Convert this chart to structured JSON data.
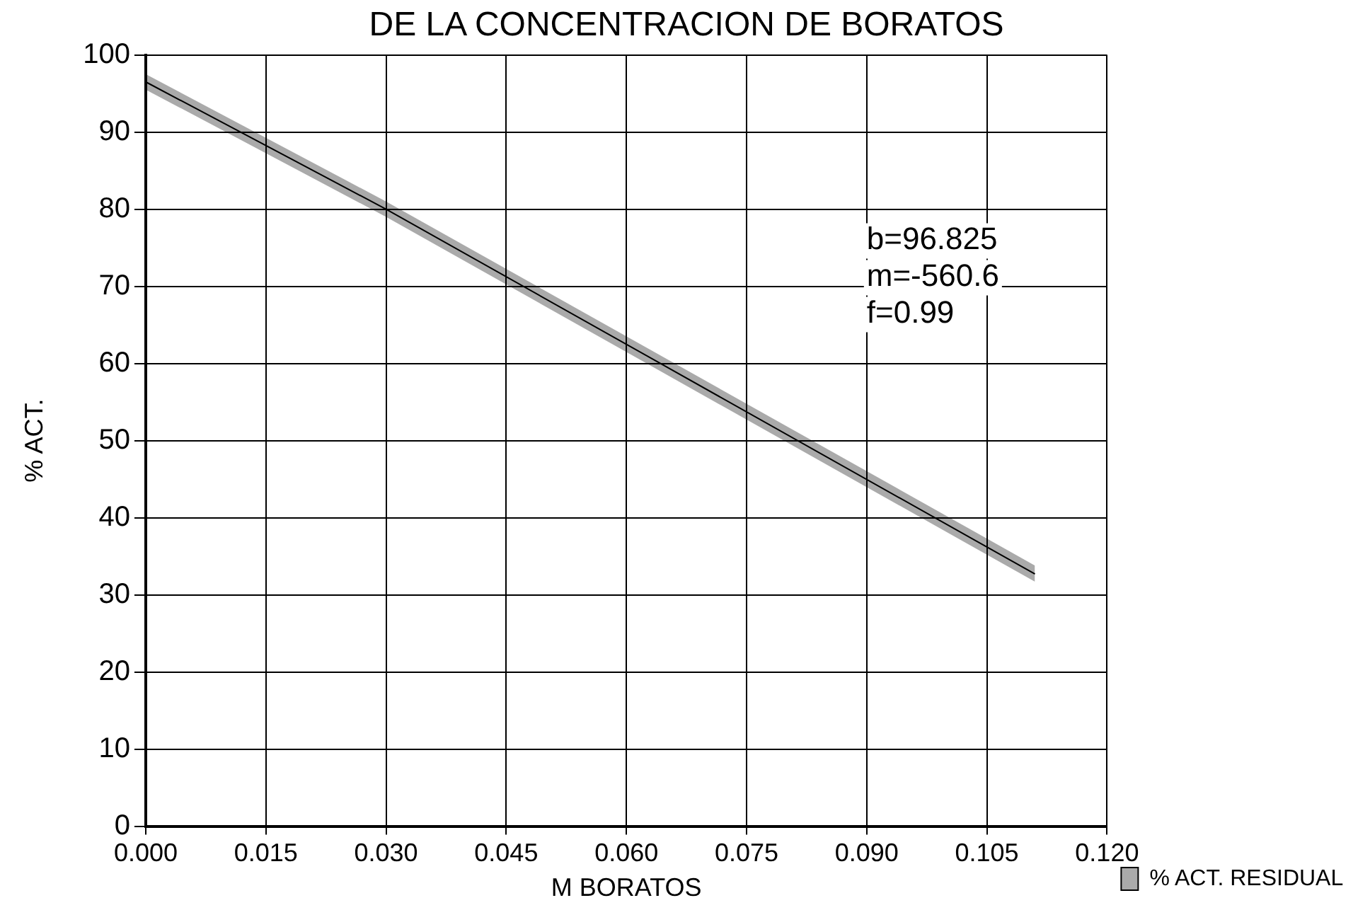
{
  "chart_data": {
    "type": "line",
    "title": "DE LA CONCENTRACION DE BORATOS",
    "xlabel": "M BORATOS",
    "ylabel": "% ACT.",
    "x": [
      0,
      0.03,
      0.111
    ],
    "series": [
      {
        "name": "% ACT. RESIDUAL",
        "color": "#000000",
        "values": [
          96.5,
          80,
          32.7
        ],
        "lower": [
          95.5,
          79,
          31.7
        ],
        "upper": [
          97.5,
          81,
          33.8
        ]
      }
    ],
    "annotations": [
      "b=96.825",
      "m=-560.6",
      "f=0.99"
    ],
    "xlim": [
      0,
      0.12
    ],
    "xticks": [
      {
        "value": 0,
        "label": "0.000"
      },
      {
        "value": 0.015,
        "label": "0.015"
      },
      {
        "value": 0.03,
        "label": "0.030"
      },
      {
        "value": 0.045,
        "label": "0.045"
      },
      {
        "value": 0.06,
        "label": "0.060"
      },
      {
        "value": 0.075,
        "label": "0.075"
      },
      {
        "value": 0.09,
        "label": "0.090"
      },
      {
        "value": 0.105,
        "label": "0.105"
      },
      {
        "value": 0.12,
        "label": "0.120"
      }
    ],
    "ylim": [
      0,
      100
    ],
    "yticks": [
      0,
      10,
      20,
      30,
      40,
      50,
      60,
      70,
      80,
      90,
      100
    ],
    "grid": true,
    "legend": "right",
    "marker": "none",
    "line_style": "solid"
  }
}
